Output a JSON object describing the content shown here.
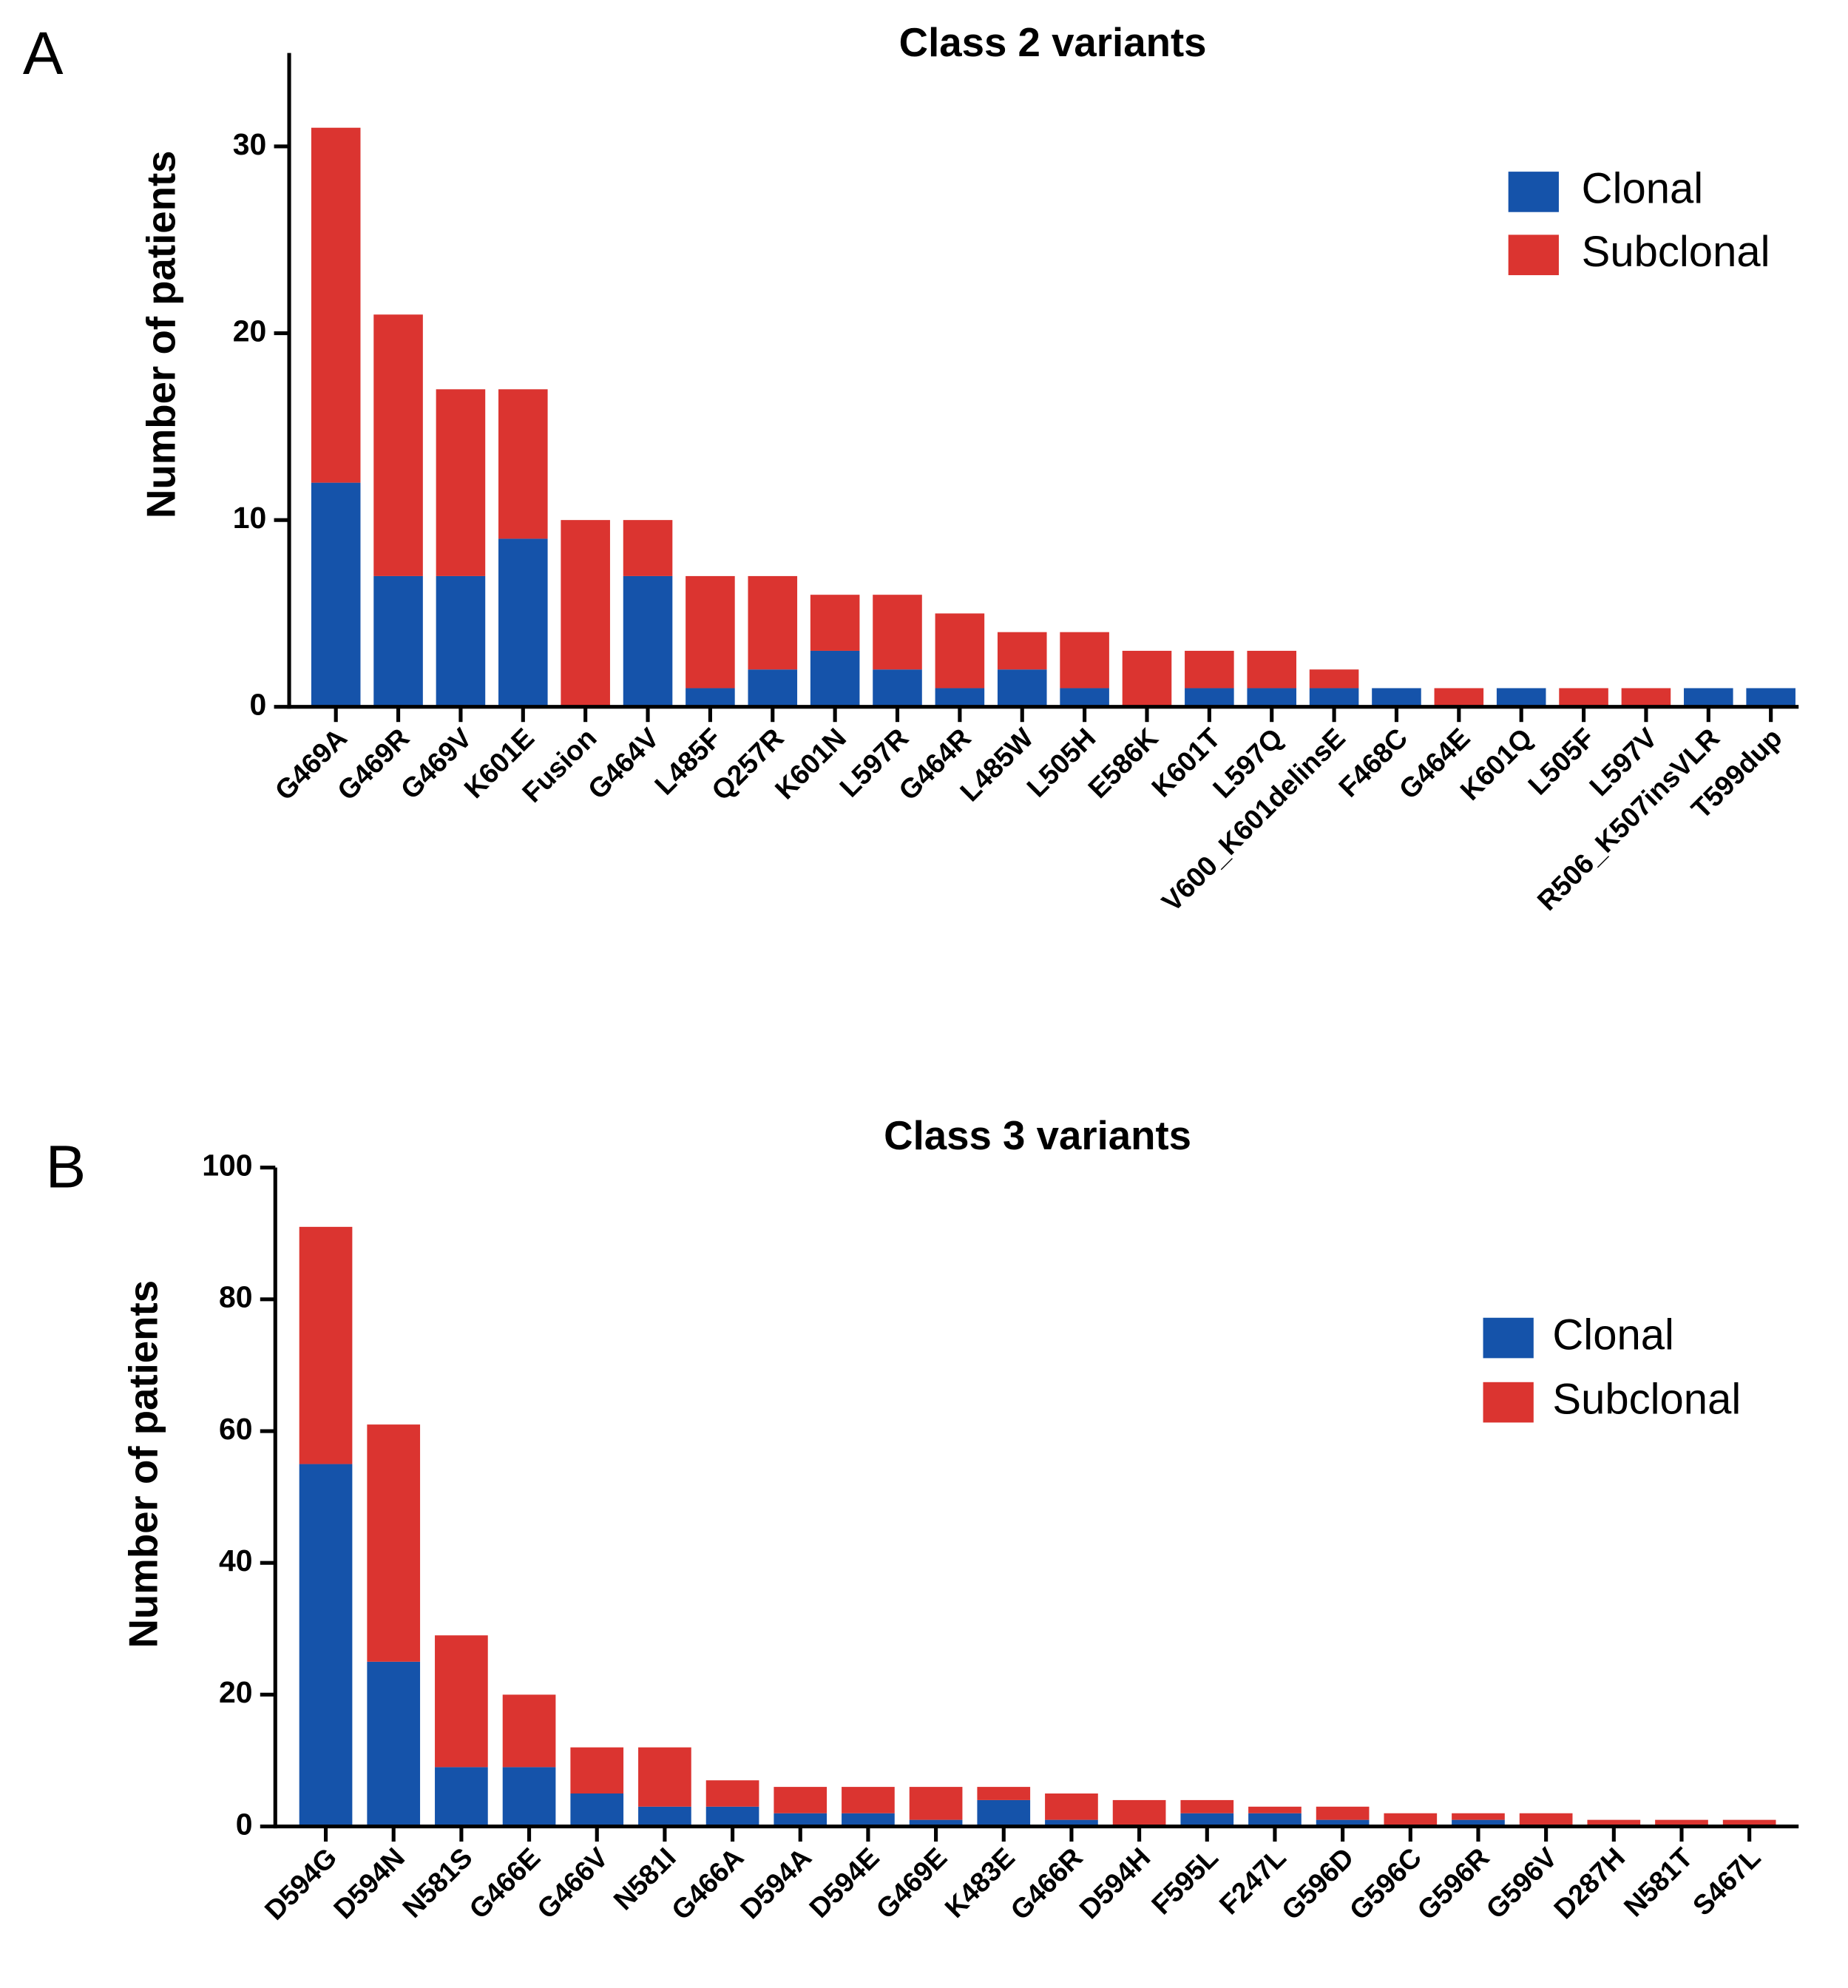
{
  "chart_data": [
    {
      "type": "stacked_bar",
      "panel_label": "A",
      "title": "Class 2 variants",
      "y_label": "Number of patients",
      "categories": [
        "G469A",
        "G469R",
        "G469V",
        "K601E",
        "Fusion",
        "G464V",
        "L485F",
        "Q257R",
        "K601N",
        "L597R",
        "G464R",
        "L485W",
        "L505H",
        "E586K",
        "K601T",
        "L597Q",
        "V600_K601delinsE",
        "F468C",
        "G464E",
        "K601Q",
        "L505F",
        "L597V",
        "R506_K507insVLR",
        "T599dup"
      ],
      "series": [
        {
          "name": "Clonal",
          "color": "#1553aa",
          "values": [
            12,
            7,
            7,
            9,
            0,
            7,
            1,
            2,
            3,
            2,
            1,
            2,
            1,
            0,
            1,
            1,
            1,
            1,
            0,
            1,
            0,
            0,
            1,
            1
          ]
        },
        {
          "name": "Subclonal",
          "color": "#db3430",
          "values": [
            19,
            14,
            10,
            8,
            10,
            3,
            6,
            5,
            3,
            4,
            4,
            2,
            3,
            3,
            2,
            2,
            1,
            0,
            1,
            0,
            1,
            1,
            0,
            0
          ]
        }
      ],
      "ylim": [
        0,
        35
      ],
      "yticks": [
        0,
        10,
        20,
        30
      ],
      "legend": "upper right"
    },
    {
      "type": "stacked_bar",
      "panel_label": "B",
      "title": "Class 3 variants",
      "y_label": "Number of patients",
      "categories": [
        "D594G",
        "D594N",
        "N581S",
        "G466E",
        "G466V",
        "N581I",
        "G466A",
        "D594A",
        "D594E",
        "G469E",
        "K483E",
        "G466R",
        "D594H",
        "F595L",
        "F247L",
        "G596D",
        "G596C",
        "G596R",
        "G596V",
        "D287H",
        "N581T",
        "S467L"
      ],
      "series": [
        {
          "name": "Clonal",
          "color": "#1553aa",
          "values": [
            55,
            25,
            9,
            9,
            5,
            3,
            3,
            2,
            2,
            1,
            4,
            1,
            0,
            2,
            2,
            1,
            0,
            1,
            0,
            0,
            0,
            0
          ]
        },
        {
          "name": "Subclonal",
          "color": "#db3430",
          "values": [
            36,
            36,
            20,
            11,
            7,
            9,
            4,
            4,
            4,
            5,
            2,
            4,
            4,
            2,
            1,
            2,
            2,
            1,
            2,
            1,
            1,
            1
          ]
        }
      ],
      "ylim": [
        0,
        100
      ],
      "yticks": [
        0,
        20,
        40,
        60,
        80,
        100
      ],
      "legend": "upper right"
    }
  ]
}
